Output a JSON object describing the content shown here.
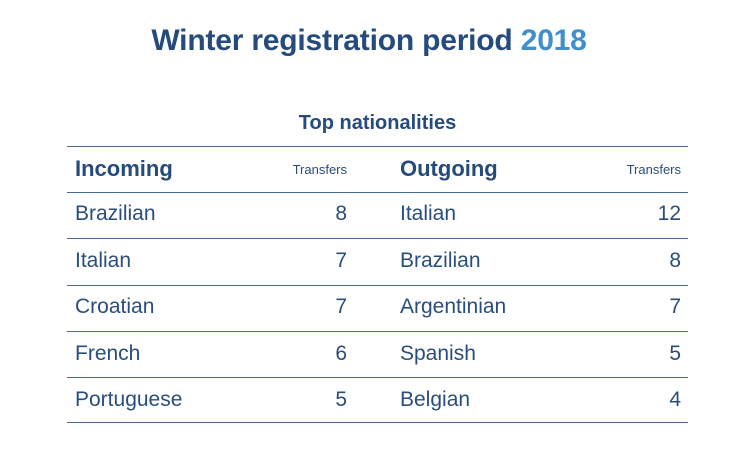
{
  "title": {
    "main": "Winter registration period",
    "year": "2018"
  },
  "subtitle": "Top nationalities",
  "table": {
    "incoming_header": "Incoming",
    "incoming_transfers_header": "Transfers",
    "outgoing_header": "Outgoing",
    "outgoing_transfers_header": "Transfers",
    "rows": [
      {
        "incoming": "Brazilian",
        "incoming_transfers": "8",
        "outgoing": "Italian",
        "outgoing_transfers": "12"
      },
      {
        "incoming": "Italian",
        "incoming_transfers": "7",
        "outgoing": "Brazilian",
        "outgoing_transfers": "8"
      },
      {
        "incoming": "Croatian",
        "incoming_transfers": "7",
        "outgoing": "Argentinian",
        "outgoing_transfers": "7"
      },
      {
        "incoming": "French",
        "incoming_transfers": "6",
        "outgoing": "Spanish",
        "outgoing_transfers": "5"
      },
      {
        "incoming": "Portuguese",
        "incoming_transfers": "5",
        "outgoing": "Belgian",
        "outgoing_transfers": "4"
      }
    ]
  }
}
